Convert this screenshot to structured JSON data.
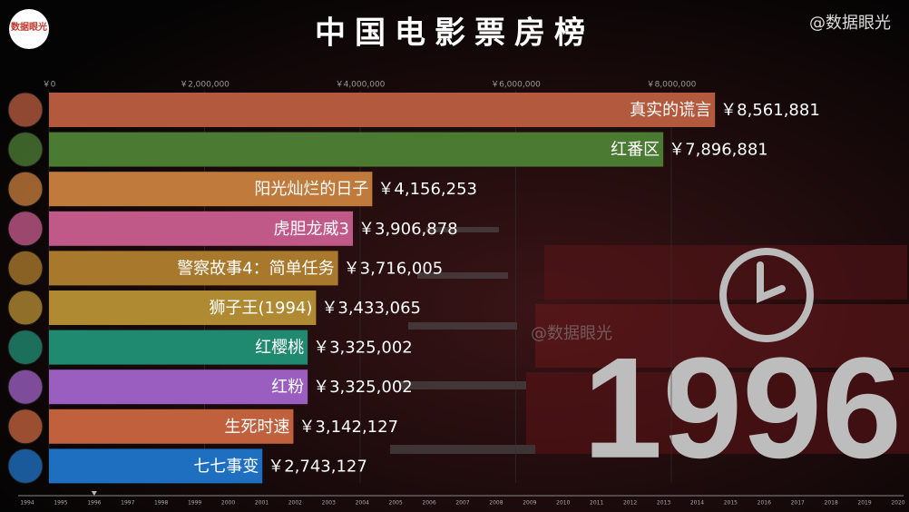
{
  "chart_data": {
    "type": "bar_race",
    "title": "中国电影票房榜",
    "logo": "数据眼光",
    "watermark": "@数据眼光",
    "current_year": "1996",
    "categories": [
      "真实的谎言",
      "红番区",
      "阳光灿烂的日子",
      "虎胆龙威3",
      "警察故事4：简单任务",
      "狮子王(1994)",
      "红樱桃",
      "红粉",
      "生死时速",
      "七七事变"
    ],
    "values": [
      8561881,
      7896881,
      4156253,
      3906878,
      3716005,
      3433065,
      3325002,
      3325002,
      3142127,
      2743127
    ],
    "value_labels": [
      "￥8,561,881",
      "￥7,896,881",
      "￥4,156,253",
      "￥3,906,878",
      "￥3,716,005",
      "￥3,433,065",
      "￥3,325,002",
      "￥3,325,002",
      "￥3,142,127",
      "￥2,743,127"
    ],
    "colors": [
      "#b35a3e",
      "#4b7a33",
      "#c07a3b",
      "#c05888",
      "#a8782c",
      "#b08a32",
      "#1f8a70",
      "#9a5ec0",
      "#c0603c",
      "#1f6fc0"
    ],
    "xlim": [
      0,
      8000000
    ],
    "xticks": [
      {
        "value": 0,
        "label": "￥0"
      },
      {
        "value": 2000000,
        "label": "￥2,000,000"
      },
      {
        "value": 4000000,
        "label": "￥4,000,000"
      },
      {
        "value": 6000000,
        "label": "￥6,000,000"
      },
      {
        "value": 8000000,
        "label": "￥8,000,000"
      }
    ],
    "grid": true,
    "timeline": [
      "1994",
      "1995",
      "1996",
      "1997",
      "1998",
      "1999",
      "2000",
      "2001",
      "2002",
      "2003",
      "2004",
      "2005",
      "2006",
      "2007",
      "2008",
      "2009",
      "2010",
      "2011",
      "2012",
      "2013",
      "2014",
      "2015",
      "2016",
      "2017",
      "2018",
      "2019",
      "2020"
    ]
  }
}
